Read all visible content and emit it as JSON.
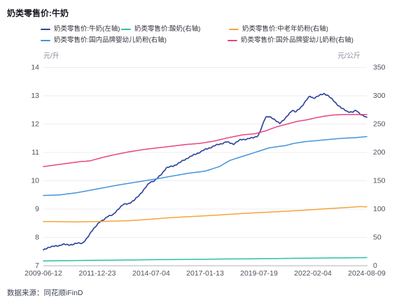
{
  "header": {
    "title": "奶类零售价:牛奶"
  },
  "source": {
    "text": "数据来源：同花顺iFinD"
  },
  "axes": {
    "left": {
      "unit": "元/升",
      "ticks": [
        "14",
        "13",
        "12",
        "11",
        "10",
        "9",
        "8",
        "7"
      ]
    },
    "right": {
      "unit": "元/公斤",
      "ticks": [
        "350",
        "300",
        "250",
        "200",
        "150",
        "100",
        "50",
        "0"
      ]
    },
    "x": {
      "ticks": [
        "2009-06-12",
        "2011-12-23",
        "2014-07-04",
        "2017-01-13",
        "2019-07-19",
        "2022-02-04",
        "2024-08-09"
      ]
    }
  },
  "colors": {
    "milk": "#33479B",
    "yogurt": "#2CC1A5",
    "midage_powder": "#F5A43C",
    "domestic_infant": "#4293DE",
    "foreign_infant": "#E8457F",
    "grid": "#ECECF5",
    "axis_line": "#ADB0BC"
  },
  "chart_data": {
    "type": "line",
    "title": "奶类零售价:牛奶",
    "x_range": [
      "2009-06-12",
      "2024-08-09"
    ],
    "left_axis": {
      "label": "元/升",
      "range": [
        7,
        14
      ]
    },
    "right_axis": {
      "label": "元/公斤",
      "range": [
        0,
        350
      ]
    },
    "grid": true,
    "legend_position": "top",
    "series": [
      {
        "name": "奶类零售价:牛奶",
        "legend_label": "奶类零售价:牛奶(左轴)",
        "axis": "left",
        "color": "#33479B",
        "points": [
          [
            "2009-06",
            7.55
          ],
          [
            "2009-09",
            7.66
          ],
          [
            "2010-02",
            7.7
          ],
          [
            "2010-05",
            7.76
          ],
          [
            "2010-08",
            7.73
          ],
          [
            "2011-01",
            7.79
          ],
          [
            "2011-04",
            7.8
          ],
          [
            "2011-07",
            8.0
          ],
          [
            "2011-10",
            8.3
          ],
          [
            "2012-01",
            8.5
          ],
          [
            "2012-04",
            8.63
          ],
          [
            "2012-06",
            8.75
          ],
          [
            "2012-09",
            8.78
          ],
          [
            "2012-12",
            9.0
          ],
          [
            "2013-03",
            9.16
          ],
          [
            "2013-06",
            9.2
          ],
          [
            "2013-09",
            9.3
          ],
          [
            "2013-12",
            9.5
          ],
          [
            "2014-03",
            9.72
          ],
          [
            "2014-06",
            9.95
          ],
          [
            "2014-09",
            10.02
          ],
          [
            "2014-12",
            10.2
          ],
          [
            "2015-03",
            10.45
          ],
          [
            "2015-07",
            10.52
          ],
          [
            "2015-11",
            10.65
          ],
          [
            "2016-03",
            10.8
          ],
          [
            "2016-08",
            10.95
          ],
          [
            "2017-01",
            11.1
          ],
          [
            "2017-07",
            11.25
          ],
          [
            "2018-01",
            11.37
          ],
          [
            "2018-05",
            11.3
          ],
          [
            "2018-09",
            11.45
          ],
          [
            "2019-01",
            11.48
          ],
          [
            "2019-04",
            11.52
          ],
          [
            "2019-07",
            11.6
          ],
          [
            "2019-09",
            11.9
          ],
          [
            "2019-11",
            12.25
          ],
          [
            "2020-01",
            12.28
          ],
          [
            "2020-04",
            12.15
          ],
          [
            "2020-07",
            12.04
          ],
          [
            "2020-10",
            12.18
          ],
          [
            "2020-12",
            12.35
          ],
          [
            "2021-02",
            12.5
          ],
          [
            "2021-04",
            12.42
          ],
          [
            "2021-07",
            12.6
          ],
          [
            "2021-10",
            12.85
          ],
          [
            "2021-12",
            12.98
          ],
          [
            "2022-02",
            12.92
          ],
          [
            "2022-05",
            13.0
          ],
          [
            "2022-08",
            13.08
          ],
          [
            "2022-10",
            13.02
          ],
          [
            "2022-12",
            12.9
          ],
          [
            "2023-03",
            12.72
          ],
          [
            "2023-06",
            12.55
          ],
          [
            "2023-09",
            12.45
          ],
          [
            "2023-12",
            12.42
          ],
          [
            "2024-02",
            12.48
          ],
          [
            "2024-04",
            12.38
          ],
          [
            "2024-06",
            12.3
          ],
          [
            "2024-08",
            12.22
          ]
        ]
      },
      {
        "name": "奶类零售价:酸奶",
        "legend_label": "奶类零售价:酸奶(右轴)",
        "axis": "right",
        "color": "#2CC1A5",
        "points": [
          [
            "2009-06",
            8.5
          ],
          [
            "2011-01",
            9.2
          ],
          [
            "2013-01",
            10.0
          ],
          [
            "2015-01",
            10.8
          ],
          [
            "2017-01",
            11.5
          ],
          [
            "2019-01",
            12.2
          ],
          [
            "2021-01",
            13.0
          ],
          [
            "2023-01",
            13.8
          ],
          [
            "2024-08",
            14.3
          ]
        ]
      },
      {
        "name": "奶类零售价:中老年奶粉",
        "legend_label": "奶类零售价:中老年奶粉(右轴)",
        "axis": "right",
        "color": "#F5A43C",
        "points": [
          [
            "2009-06",
            78
          ],
          [
            "2011-01",
            77.5
          ],
          [
            "2012-01",
            78
          ],
          [
            "2013-06",
            79.5
          ],
          [
            "2014-06",
            82
          ],
          [
            "2015-06",
            85
          ],
          [
            "2016-06",
            87
          ],
          [
            "2017-06",
            89
          ],
          [
            "2018-06",
            91.5
          ],
          [
            "2019-06",
            93.5
          ],
          [
            "2020-06",
            95.5
          ],
          [
            "2021-06",
            97.5
          ],
          [
            "2022-06",
            100
          ],
          [
            "2023-02",
            101.5
          ],
          [
            "2023-10",
            103
          ],
          [
            "2024-04",
            104.5
          ],
          [
            "2024-08",
            104
          ]
        ]
      },
      {
        "name": "奶类零售价:国内品牌婴幼儿奶粉",
        "legend_label": "奶类零售价:国内品牌婴幼儿奶粉(右轴)",
        "axis": "right",
        "color": "#4293DE",
        "points": [
          [
            "2009-06",
            124
          ],
          [
            "2010-03",
            125
          ],
          [
            "2011-01",
            129
          ],
          [
            "2012-01",
            136
          ],
          [
            "2013-01",
            143
          ],
          [
            "2014-01",
            149
          ],
          [
            "2014-09",
            153
          ],
          [
            "2015-06",
            158
          ],
          [
            "2016-03",
            163
          ],
          [
            "2017-01",
            167
          ],
          [
            "2017-09",
            175
          ],
          [
            "2018-03",
            186
          ],
          [
            "2019-01",
            196
          ],
          [
            "2019-07",
            202
          ],
          [
            "2020-01",
            208
          ],
          [
            "2020-05",
            210
          ],
          [
            "2020-10",
            212
          ],
          [
            "2021-03",
            216
          ],
          [
            "2021-09",
            219
          ],
          [
            "2022-04",
            221
          ],
          [
            "2022-11",
            223
          ],
          [
            "2023-06",
            225
          ],
          [
            "2024-01",
            226
          ],
          [
            "2024-08",
            228
          ]
        ]
      },
      {
        "name": "奶类零售价:国外品牌婴幼儿奶粉",
        "legend_label": "奶类零售价:国外品牌婴幼儿奶粉(右轴)",
        "axis": "right",
        "color": "#E8457F",
        "points": [
          [
            "2009-06",
            175
          ],
          [
            "2010-01",
            178
          ],
          [
            "2010-08",
            181
          ],
          [
            "2011-03",
            184
          ],
          [
            "2011-08",
            185
          ],
          [
            "2012-03",
            191
          ],
          [
            "2012-10",
            196
          ],
          [
            "2013-06",
            201
          ],
          [
            "2014-02",
            205
          ],
          [
            "2014-10",
            208
          ],
          [
            "2015-06",
            211
          ],
          [
            "2016-02",
            214
          ],
          [
            "2016-10",
            216
          ],
          [
            "2017-06",
            220
          ],
          [
            "2018-02",
            226
          ],
          [
            "2018-10",
            231
          ],
          [
            "2019-05",
            233
          ],
          [
            "2019-11",
            238
          ],
          [
            "2020-05",
            245
          ],
          [
            "2020-11",
            250
          ],
          [
            "2021-05",
            255
          ],
          [
            "2021-11",
            258
          ],
          [
            "2022-03",
            261
          ],
          [
            "2022-08",
            264
          ],
          [
            "2023-01",
            266
          ],
          [
            "2023-07",
            267
          ],
          [
            "2024-01",
            267
          ],
          [
            "2024-08",
            267
          ]
        ]
      }
    ]
  }
}
